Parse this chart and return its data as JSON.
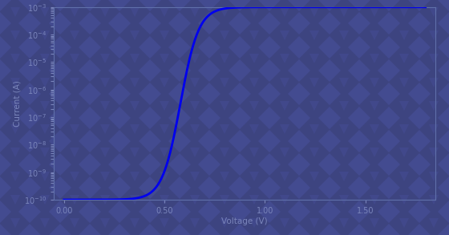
{
  "background_color": "#3d4480",
  "watermark_color": "#4a52a0",
  "line_color": "#0000ee",
  "line_width": 2.0,
  "x_start": 0.0,
  "x_end": 1.8,
  "x_mid": 0.58,
  "slope": 22.0,
  "log_y_low": -10,
  "log_y_high": -3,
  "figsize": [
    5.6,
    2.93
  ],
  "dpi": 100,
  "xlim": [
    -0.05,
    1.85
  ],
  "ylim_log": [
    -10,
    -3
  ],
  "tick_color": "#7a85bb",
  "spine_color": "#6070aa",
  "xticks": [
    0.0,
    0.5,
    1.0,
    1.5
  ],
  "xtick_labels": [
    "0.00",
    "0.50",
    "1.00",
    "1.50"
  ],
  "xlabel": "Voltage (V)",
  "ylabel": "Current (A)"
}
